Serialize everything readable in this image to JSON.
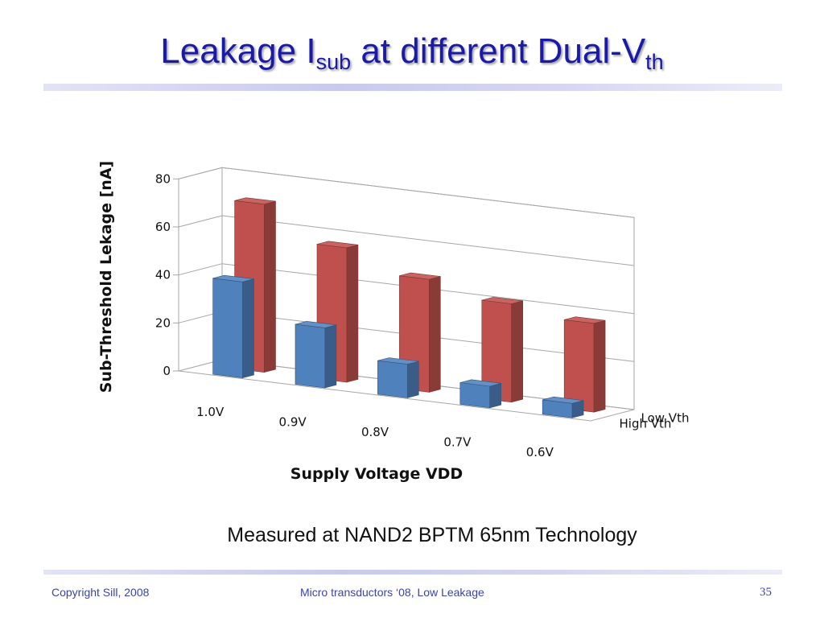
{
  "slide": {
    "title": {
      "part1": "Leakage I",
      "sub1": "sub",
      "part2": " at different Dual-V",
      "sub2": "th"
    },
    "caption": "Measured at NAND2 BPTM 65nm Technology",
    "footer": {
      "left": "Copyright Sill, 2008",
      "center": "Micro transductors ‘08, Low Leakage",
      "page": "35"
    },
    "colors": {
      "title": "#1a1aa6",
      "footer_text": "#3a44a8",
      "rule": "#c9c9ee"
    }
  },
  "chart_data": {
    "type": "bar",
    "title": "",
    "xlabel": "Supply Voltage VDD",
    "ylabel": "Sub-Threshold Lekage [nA]",
    "categories": [
      "1.0V",
      "0.9V",
      "0.8V",
      "0.7V",
      "0.6V"
    ],
    "series": [
      {
        "name": "Low Vth",
        "values": [
          70,
          56,
          47,
          41,
          37
        ],
        "color": "#c0504d"
      },
      {
        "name": "High Vth",
        "values": [
          40,
          25,
          14,
          9,
          6
        ],
        "color": "#4f81bd"
      }
    ],
    "ylim": [
      0,
      80
    ],
    "yticks": [
      0,
      20,
      40,
      60,
      80
    ],
    "grid": true,
    "legend": "right",
    "style": "3d-clustered-depth"
  }
}
